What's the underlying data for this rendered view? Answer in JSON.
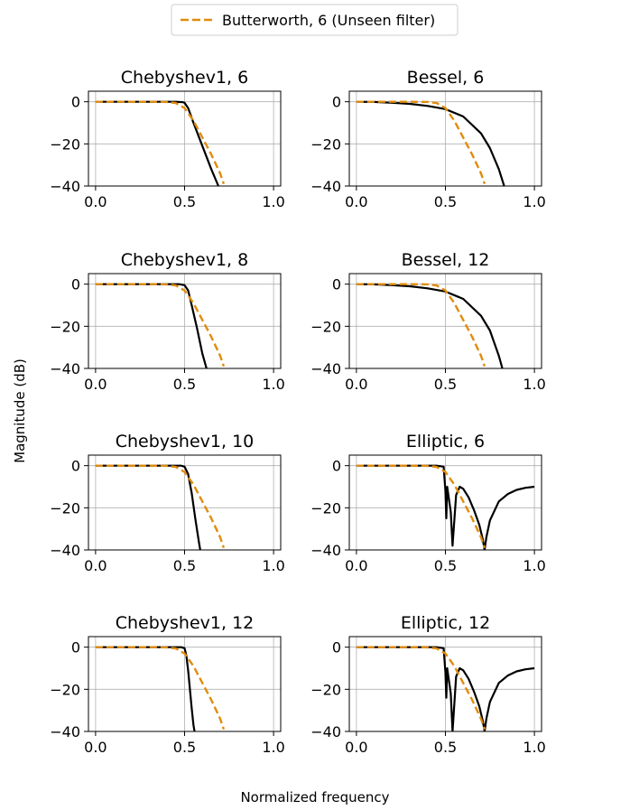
{
  "figure": {
    "xlabel": "Normalized frequency",
    "ylabel": "Magnitude (dB)",
    "legend": {
      "label": "Butterworth, 6 (Unseen filter)",
      "color": "#e08c0e",
      "placement": "top-center"
    }
  },
  "chart_data": [
    {
      "type": "line",
      "title": "Chebyshev1, 6",
      "xlim": [
        -0.04,
        1.04
      ],
      "ylim": [
        -40,
        5
      ],
      "xticks": [
        "0.0",
        "0.5",
        "1.0"
      ],
      "yticks": [
        "0",
        "−20",
        "−40"
      ],
      "grid": true,
      "series": [
        {
          "color": "#000000",
          "dash": "solid",
          "x": [
            0,
            0.3,
            0.45,
            0.49,
            0.5,
            0.52,
            0.55,
            0.6,
            0.65,
            0.7
          ],
          "y": [
            0,
            0,
            0,
            -0.2,
            -0.5,
            -3,
            -10,
            -21,
            -32,
            -42
          ]
        },
        {
          "color": "#e08c0e",
          "dash": "dashed",
          "x": [
            0,
            0.3,
            0.4,
            0.45,
            0.5,
            0.55,
            0.6,
            0.65,
            0.7,
            0.72
          ],
          "y": [
            0,
            0,
            -0.1,
            -0.6,
            -3,
            -9,
            -17,
            -25,
            -34,
            -39
          ]
        }
      ]
    },
    {
      "type": "line",
      "title": "Bessel, 6",
      "xlim": [
        -0.04,
        1.04
      ],
      "ylim": [
        -40,
        5
      ],
      "xticks": [
        "0.0",
        "0.5",
        "1.0"
      ],
      "yticks": [
        "0",
        "−20",
        "−40"
      ],
      "grid": true,
      "series": [
        {
          "color": "#000000",
          "dash": "solid",
          "x": [
            0,
            0.1,
            0.2,
            0.3,
            0.4,
            0.5,
            0.6,
            0.7,
            0.75,
            0.8,
            0.83
          ],
          "y": [
            0,
            -0.1,
            -0.5,
            -1,
            -2,
            -3.5,
            -7,
            -15,
            -22,
            -32,
            -40
          ]
        },
        {
          "color": "#e08c0e",
          "dash": "dashed",
          "x": [
            0,
            0.3,
            0.4,
            0.45,
            0.5,
            0.55,
            0.6,
            0.65,
            0.7,
            0.72
          ],
          "y": [
            0,
            0,
            -0.1,
            -0.6,
            -3,
            -9,
            -17,
            -25,
            -34,
            -39
          ]
        }
      ]
    },
    {
      "type": "line",
      "title": "Chebyshev1, 8",
      "xlim": [
        -0.04,
        1.04
      ],
      "ylim": [
        -40,
        5
      ],
      "xticks": [
        "0.0",
        "0.5",
        "1.0"
      ],
      "yticks": [
        "0",
        "−20",
        "−40"
      ],
      "grid": true,
      "series": [
        {
          "color": "#000000",
          "dash": "solid",
          "x": [
            0,
            0.3,
            0.47,
            0.5,
            0.52,
            0.54,
            0.57,
            0.6,
            0.63
          ],
          "y": [
            0,
            0,
            0,
            -0.5,
            -3,
            -10,
            -21,
            -33,
            -42
          ]
        },
        {
          "color": "#e08c0e",
          "dash": "dashed",
          "x": [
            0,
            0.3,
            0.4,
            0.45,
            0.5,
            0.55,
            0.6,
            0.65,
            0.7,
            0.72
          ],
          "y": [
            0,
            0,
            -0.1,
            -0.6,
            -3,
            -9,
            -17,
            -25,
            -34,
            -39
          ]
        }
      ]
    },
    {
      "type": "line",
      "title": "Bessel, 12",
      "xlim": [
        -0.04,
        1.04
      ],
      "ylim": [
        -40,
        5
      ],
      "xticks": [
        "0.0",
        "0.5",
        "1.0"
      ],
      "yticks": [
        "0",
        "−20",
        "−40"
      ],
      "grid": true,
      "series": [
        {
          "color": "#000000",
          "dash": "solid",
          "x": [
            0,
            0.1,
            0.2,
            0.3,
            0.4,
            0.5,
            0.6,
            0.7,
            0.75,
            0.8,
            0.82
          ],
          "y": [
            0,
            -0.1,
            -0.5,
            -1,
            -2,
            -3.5,
            -7,
            -15,
            -22,
            -34,
            -40
          ]
        },
        {
          "color": "#e08c0e",
          "dash": "dashed",
          "x": [
            0,
            0.3,
            0.4,
            0.45,
            0.5,
            0.55,
            0.6,
            0.65,
            0.7,
            0.72
          ],
          "y": [
            0,
            0,
            -0.1,
            -0.6,
            -3,
            -9,
            -17,
            -25,
            -34,
            -39
          ]
        }
      ]
    },
    {
      "type": "line",
      "title": "Chebyshev1, 10",
      "xlim": [
        -0.04,
        1.04
      ],
      "ylim": [
        -40,
        5
      ],
      "xticks": [
        "0.0",
        "0.5",
        "1.0"
      ],
      "yticks": [
        "0",
        "−20",
        "−40"
      ],
      "grid": true,
      "series": [
        {
          "color": "#000000",
          "dash": "solid",
          "x": [
            0,
            0.3,
            0.48,
            0.5,
            0.52,
            0.54,
            0.56,
            0.58,
            0.59
          ],
          "y": [
            0,
            0,
            0,
            -0.5,
            -4,
            -13,
            -25,
            -36,
            -41
          ]
        },
        {
          "color": "#e08c0e",
          "dash": "dashed",
          "x": [
            0,
            0.3,
            0.4,
            0.45,
            0.5,
            0.55,
            0.6,
            0.65,
            0.7,
            0.72
          ],
          "y": [
            0,
            0,
            -0.1,
            -0.6,
            -3,
            -9,
            -17,
            -25,
            -34,
            -39
          ]
        }
      ]
    },
    {
      "type": "line",
      "title": "Elliptic, 6",
      "xlim": [
        -0.04,
        1.04
      ],
      "ylim": [
        -40,
        5
      ],
      "xticks": [
        "0.0",
        "0.5",
        "1.0"
      ],
      "yticks": [
        "0",
        "−20",
        "−40"
      ],
      "grid": true,
      "series": [
        {
          "color": "#000000",
          "dash": "solid",
          "x": [
            0,
            0.45,
            0.49,
            0.5,
            0.505,
            0.51,
            0.52,
            0.53,
            0.54,
            0.56,
            0.58,
            0.6,
            0.63,
            0.66,
            0.69,
            0.71,
            0.72,
            0.73,
            0.75,
            0.8,
            0.85,
            0.9,
            0.95,
            1.0
          ],
          "y": [
            0,
            0,
            -0.5,
            -12,
            -25,
            -10,
            -16,
            -22,
            -38,
            -14,
            -10,
            -11,
            -15,
            -21,
            -28,
            -35,
            -40,
            -34,
            -26,
            -17,
            -13.5,
            -11.5,
            -10.5,
            -10
          ]
        },
        {
          "color": "#e08c0e",
          "dash": "dashed",
          "x": [
            0,
            0.3,
            0.4,
            0.45,
            0.5,
            0.55,
            0.6,
            0.65,
            0.7,
            0.72
          ],
          "y": [
            0,
            0,
            -0.1,
            -0.6,
            -3,
            -9,
            -17,
            -25,
            -34,
            -39
          ]
        }
      ]
    },
    {
      "type": "line",
      "title": "Chebyshev1, 12",
      "xlim": [
        -0.04,
        1.04
      ],
      "ylim": [
        -40,
        5
      ],
      "xticks": [
        "0.0",
        "0.5",
        "1.0"
      ],
      "yticks": [
        "0",
        "−20",
        "−40"
      ],
      "grid": true,
      "series": [
        {
          "color": "#000000",
          "dash": "solid",
          "x": [
            0,
            0.3,
            0.48,
            0.5,
            0.51,
            0.52,
            0.53,
            0.54,
            0.55,
            0.56
          ],
          "y": [
            0,
            0,
            0,
            -0.5,
            -4,
            -11,
            -20,
            -29,
            -37,
            -42
          ]
        },
        {
          "color": "#e08c0e",
          "dash": "dashed",
          "x": [
            0,
            0.3,
            0.4,
            0.45,
            0.5,
            0.55,
            0.6,
            0.65,
            0.7,
            0.72
          ],
          "y": [
            0,
            0,
            -0.1,
            -0.6,
            -3,
            -9,
            -17,
            -25,
            -34,
            -39
          ]
        }
      ]
    },
    {
      "type": "line",
      "title": "Elliptic, 12",
      "xlim": [
        -0.04,
        1.04
      ],
      "ylim": [
        -40,
        5
      ],
      "xticks": [
        "0.0",
        "0.5",
        "1.0"
      ],
      "yticks": [
        "0",
        "−20",
        "−40"
      ],
      "grid": true,
      "series": [
        {
          "color": "#000000",
          "dash": "solid",
          "x": [
            0,
            0.45,
            0.49,
            0.5,
            0.505,
            0.51,
            0.52,
            0.53,
            0.54,
            0.56,
            0.58,
            0.6,
            0.63,
            0.66,
            0.69,
            0.71,
            0.72,
            0.73,
            0.75,
            0.8,
            0.85,
            0.9,
            0.95,
            1.0
          ],
          "y": [
            0,
            0,
            -0.5,
            -12,
            -24,
            -10,
            -16,
            -22,
            -40,
            -14,
            -10,
            -11,
            -15,
            -21,
            -28,
            -35,
            -40,
            -34,
            -26,
            -17,
            -13.5,
            -11.5,
            -10.5,
            -10
          ]
        },
        {
          "color": "#e08c0e",
          "dash": "dashed",
          "x": [
            0,
            0.3,
            0.4,
            0.45,
            0.5,
            0.55,
            0.6,
            0.65,
            0.7,
            0.72
          ],
          "y": [
            0,
            0,
            -0.1,
            -0.6,
            -3,
            -9,
            -17,
            -25,
            -34,
            -39
          ]
        }
      ]
    }
  ]
}
